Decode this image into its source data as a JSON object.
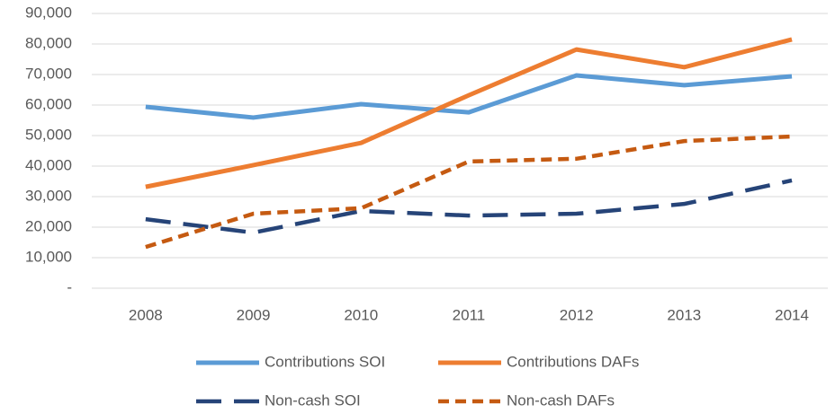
{
  "chart_data": {
    "type": "line",
    "categories": [
      "2008",
      "2009",
      "2010",
      "2011",
      "2012",
      "2013",
      "2014"
    ],
    "series": [
      {
        "name": "Contributions SOI",
        "color": "#5b9bd5",
        "line_style": "solid",
        "values": [
          59400,
          55900,
          60300,
          57600,
          69700,
          66500,
          69400
        ]
      },
      {
        "name": "Contributions DAFs",
        "color": "#ed7d31",
        "line_style": "solid",
        "values": [
          33200,
          40300,
          47600,
          63200,
          78200,
          72400,
          81500
        ]
      },
      {
        "name": "Non-cash SOI",
        "color": "#264478",
        "line_style": "long-dash",
        "values": [
          22600,
          18200,
          25300,
          23800,
          24400,
          27600,
          35300
        ]
      },
      {
        "name": "Non-cash DAFs",
        "color": "#c55a11",
        "line_style": "dash",
        "values": [
          13500,
          24400,
          26200,
          41500,
          42400,
          48200,
          49700
        ]
      }
    ],
    "ylim": [
      0,
      90000
    ],
    "yticks": [
      {
        "value": 0,
        "label": "-"
      },
      {
        "value": 10000,
        "label": "10,000"
      },
      {
        "value": 20000,
        "label": "20,000"
      },
      {
        "value": 30000,
        "label": "30,000"
      },
      {
        "value": 40000,
        "label": "40,000"
      },
      {
        "value": 50000,
        "label": "50,000"
      },
      {
        "value": 60000,
        "label": "60,000"
      },
      {
        "value": 70000,
        "label": "70,000"
      },
      {
        "value": 80000,
        "label": "80,000"
      },
      {
        "value": 90000,
        "label": "90,000"
      }
    ],
    "grid": true,
    "legend": "bottom"
  }
}
